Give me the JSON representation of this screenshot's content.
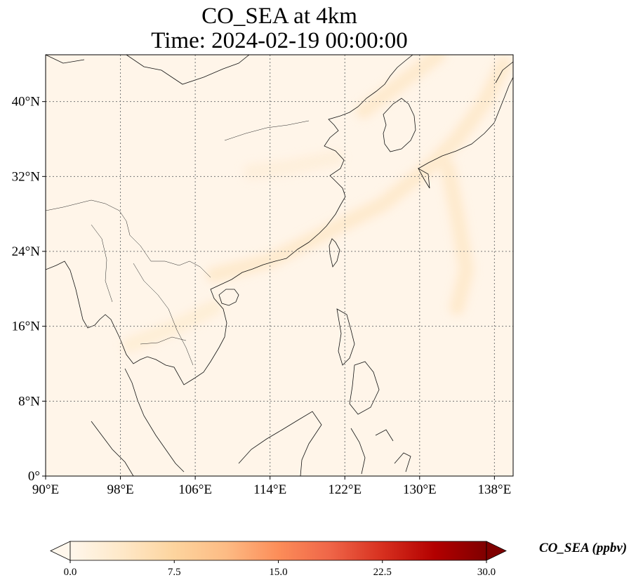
{
  "title": {
    "line1": "CO_SEA at 4km",
    "line2": "Time: 2024-02-19 00:00:00"
  },
  "map": {
    "lon_range": [
      90,
      140
    ],
    "lat_range": [
      0,
      45
    ],
    "lon_ticks": [
      {
        "value": 90,
        "label": "90°E"
      },
      {
        "value": 98,
        "label": "98°E"
      },
      {
        "value": 106,
        "label": "106°E"
      },
      {
        "value": 114,
        "label": "114°E"
      },
      {
        "value": 122,
        "label": "122°E"
      },
      {
        "value": 130,
        "label": "130°E"
      },
      {
        "value": 138,
        "label": "138°E"
      }
    ],
    "lat_ticks": [
      {
        "value": 0,
        "label": "0°"
      },
      {
        "value": 8,
        "label": "8°N"
      },
      {
        "value": 16,
        "label": "16°N"
      },
      {
        "value": 24,
        "label": "24°N"
      },
      {
        "value": 32,
        "label": "32°N"
      },
      {
        "value": 40,
        "label": "40°N"
      }
    ],
    "gridlines": true,
    "background_color": "#fff5e9"
  },
  "colorbar": {
    "label": "CO_SEA (ppbv)",
    "range": [
      0,
      30
    ],
    "ticks": [
      "0.0",
      "7.5",
      "15.0",
      "22.5",
      "30.0"
    ],
    "extend": "both",
    "colormap": "OrRd",
    "stops": [
      "#fff7ec",
      "#fee8c8",
      "#fdd49e",
      "#fdbb84",
      "#fc8d59",
      "#ef6548",
      "#d7301f",
      "#b30000",
      "#7f0000"
    ]
  },
  "plumes": [
    {
      "desc": "plume from south China coast to NE",
      "path": [
        [
          108,
          21.5
        ],
        [
          114,
          23
        ],
        [
          120,
          26
        ],
        [
          126,
          29
        ],
        [
          131,
          33
        ],
        [
          134,
          36
        ],
        [
          137,
          40
        ],
        [
          139,
          44
        ]
      ],
      "ppbv": 3.5
    },
    {
      "desc": "plume east of Japan",
      "path": [
        [
          133,
          33
        ],
        [
          134,
          28
        ],
        [
          135,
          22
        ],
        [
          134,
          18
        ]
      ],
      "ppbv": 3.5
    },
    {
      "desc": "plume from Korea NE",
      "path": [
        [
          124,
          39
        ],
        [
          128,
          42
        ],
        [
          132,
          45
        ]
      ],
      "ppbv": 3.5
    },
    {
      "desc": "plume over Indochina",
      "path": [
        [
          99,
          14
        ],
        [
          104,
          16
        ],
        [
          108,
          18
        ]
      ],
      "ppbv": 2.5
    },
    {
      "desc": "plume over central China",
      "path": [
        [
          112,
          32.5
        ],
        [
          116,
          33
        ],
        [
          121,
          34
        ]
      ],
      "ppbv": 2
    }
  ]
}
